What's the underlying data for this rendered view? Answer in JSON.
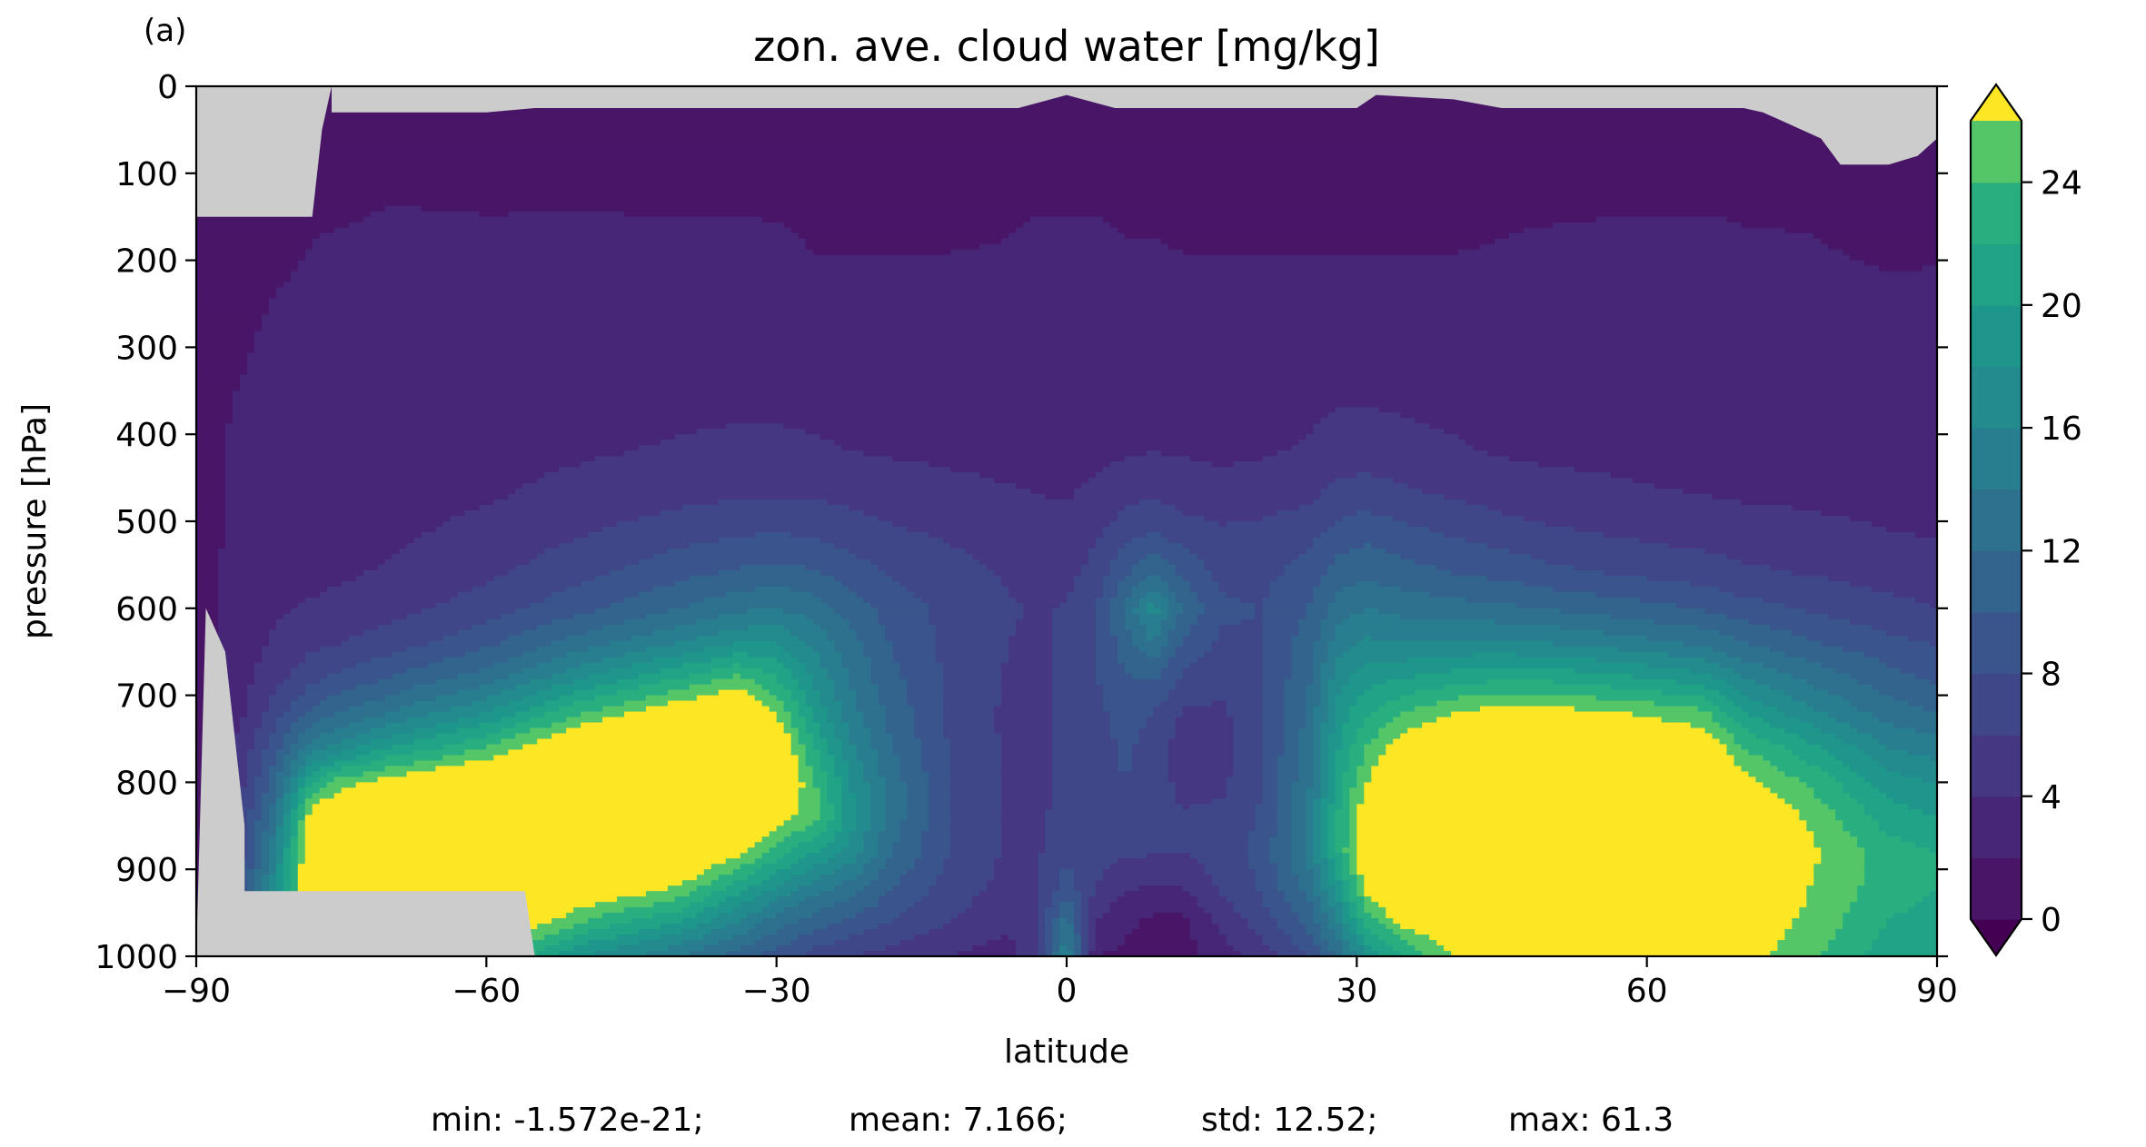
{
  "panel_label": "(a)",
  "chart_data": {
    "type": "heatmap",
    "subtype": "filled-contour",
    "title": "zon. ave. cloud water [mg/kg]",
    "xlabel": "latitude",
    "ylabel": "pressure [hPa]",
    "xlim": [
      -90,
      90
    ],
    "ylim": [
      1000,
      0
    ],
    "x_ticks": [
      -90,
      -60,
      -30,
      0,
      30,
      60,
      90
    ],
    "x_tick_labels": [
      "−90",
      "−60",
      "−30",
      "0",
      "30",
      "60",
      "90"
    ],
    "y_ticks": [
      0,
      100,
      200,
      300,
      400,
      500,
      600,
      700,
      800,
      900,
      1000
    ],
    "y_tick_labels": [
      "0",
      "100",
      "200",
      "300",
      "400",
      "500",
      "600",
      "700",
      "800",
      "900",
      "1000"
    ],
    "grid": false,
    "colormap": "viridis",
    "missing_color": "#cccccc",
    "colorbar": {
      "levels": [
        0,
        2,
        4,
        6,
        8,
        10,
        12,
        14,
        16,
        18,
        20,
        22,
        24,
        26
      ],
      "tick_values": [
        0,
        4,
        8,
        12,
        16,
        20,
        24
      ],
      "tick_labels": [
        "0",
        "4",
        "8",
        "12",
        "16",
        "20",
        "24"
      ],
      "extend": "both",
      "under_color": "#440154",
      "over_color": "#fde725",
      "band_colors": [
        "#481567",
        "#482677",
        "#453781",
        "#3f4788",
        "#39558c",
        "#32648e",
        "#2d718e",
        "#287d8e",
        "#238a8d",
        "#1f968b",
        "#20a386",
        "#29af7f",
        "#55c667",
        "#73d055"
      ]
    },
    "field_nodes": {
      "lat": [
        -90,
        -85,
        -82,
        -78,
        -75,
        -70,
        -60,
        -50,
        -40,
        -34,
        -30,
        -26,
        -22,
        -18,
        -12,
        -6,
        -3,
        0,
        3,
        6,
        9,
        12,
        16,
        20,
        25,
        28,
        31,
        35,
        40,
        45,
        50,
        60,
        66,
        70,
        78,
        85,
        90
      ],
      "lev": [
        30,
        75,
        120,
        175,
        240,
        330,
        420,
        470,
        510,
        560,
        600,
        640,
        680,
        720,
        760,
        800,
        840,
        880,
        920,
        960,
        1000
      ],
      "profiles": [
        [
          0.2,
          0.3,
          0.6,
          1.4,
          1.6,
          1.8,
          1.7,
          1.6,
          1.5,
          1.4,
          1.2,
          1.0,
          1.0,
          1.0,
          1.0,
          1.0,
          1.0,
          1.0,
          1.0,
          1.0,
          1.0
        ],
        [
          0.2,
          0.3,
          0.6,
          1.2,
          1.8,
          2.0,
          2.2,
          2.3,
          2.4,
          2.6,
          2.8,
          3.0,
          3.4,
          4.0,
          5.0,
          6.0,
          7.0,
          8.0,
          9.0,
          10.0,
          10.0
        ],
        [
          0.2,
          0.3,
          0.6,
          1.3,
          2.0,
          2.3,
          2.6,
          2.8,
          3.0,
          3.3,
          3.7,
          4.3,
          5.3,
          7.0,
          9.0,
          11.0,
          13.0,
          15.0,
          17.0,
          19.0,
          19.0
        ],
        [
          0.3,
          0.8,
          1.4,
          2.0,
          2.4,
          2.7,
          2.9,
          3.0,
          3.2,
          3.6,
          4.2,
          5.5,
          7.5,
          10.5,
          15.0,
          22.0,
          28.0,
          30.0,
          30.0,
          30.0,
          30.0
        ],
        [
          0.3,
          0.7,
          1.3,
          2.2,
          2.5,
          2.8,
          3.0,
          3.1,
          3.3,
          3.8,
          4.5,
          6.0,
          8.5,
          12.0,
          17.0,
          25.0,
          30.0,
          32.0,
          32.0,
          31.0,
          30.0
        ],
        [
          0.4,
          1.1,
          1.8,
          2.5,
          2.7,
          2.9,
          3.1,
          3.3,
          3.6,
          4.2,
          5.2,
          7.0,
          10.0,
          14.0,
          20.0,
          27.0,
          32.0,
          34.0,
          33.0,
          31.0,
          28.0
        ],
        [
          0.5,
          1.0,
          1.5,
          2.5,
          2.8,
          3.0,
          3.4,
          3.8,
          4.5,
          5.6,
          7.0,
          9.5,
          13.0,
          18.0,
          24.0,
          30.0,
          34.0,
          35.0,
          33.0,
          30.0,
          25.0
        ],
        [
          0.5,
          1.2,
          1.6,
          2.5,
          2.8,
          3.1,
          3.8,
          4.6,
          5.8,
          7.4,
          9.5,
          13.0,
          18.0,
          24.0,
          30.0,
          34.0,
          35.0,
          33.0,
          29.0,
          24.0,
          18.0
        ],
        [
          0.6,
          1.1,
          1.5,
          2.4,
          2.8,
          3.2,
          4.2,
          5.4,
          7.0,
          9.4,
          12.0,
          16.0,
          22.0,
          28.0,
          33.0,
          35.0,
          34.0,
          30.0,
          26.0,
          20.0,
          14.0
        ],
        [
          0.6,
          1.2,
          1.6,
          2.3,
          2.8,
          3.3,
          4.4,
          5.8,
          7.6,
          10.4,
          13.5,
          18.0,
          24.5,
          30.0,
          33.0,
          33.0,
          31.0,
          27.0,
          21.0,
          16.0,
          11.0
        ],
        [
          0.5,
          1.1,
          1.5,
          2.3,
          2.8,
          3.3,
          4.4,
          5.9,
          7.8,
          10.8,
          14.0,
          18.0,
          22.0,
          26.0,
          29.0,
          30.0,
          27.0,
          23.0,
          18.0,
          13.0,
          9.0
        ],
        [
          0.5,
          1.0,
          1.4,
          1.8,
          2.6,
          3.2,
          4.2,
          5.8,
          7.4,
          10.2,
          13.0,
          15.5,
          17.5,
          19.5,
          22.0,
          24.0,
          25.0,
          20.0,
          15.0,
          11.0,
          7.0
        ],
        [
          0.6,
          1.0,
          1.5,
          1.8,
          2.6,
          3.1,
          4.0,
          5.4,
          6.8,
          9.0,
          11.0,
          12.5,
          13.5,
          14.5,
          16.0,
          17.5,
          18.5,
          17.0,
          13.0,
          9.5,
          6.0
        ],
        [
          0.6,
          1.2,
          1.6,
          1.8,
          2.6,
          3.0,
          3.8,
          5.0,
          6.2,
          7.8,
          9.0,
          9.8,
          10.5,
          11.2,
          12.0,
          13.0,
          13.0,
          12.0,
          10.0,
          8.0,
          5.0
        ],
        [
          0.7,
          1.1,
          1.5,
          1.8,
          2.6,
          2.9,
          3.6,
          4.6,
          5.6,
          6.8,
          7.4,
          7.4,
          7.6,
          7.6,
          7.8,
          8.0,
          8.0,
          8.0,
          7.0,
          6.0,
          4.0
        ],
        [
          0.8,
          1.3,
          1.7,
          2.0,
          2.6,
          2.8,
          3.4,
          4.2,
          5.0,
          5.8,
          6.2,
          6.0,
          5.8,
          5.6,
          5.6,
          5.6,
          5.6,
          5.6,
          5.4,
          4.5,
          3.0
        ],
        [
          1.0,
          1.6,
          1.8,
          2.2,
          2.6,
          2.8,
          3.3,
          4.0,
          4.8,
          5.4,
          5.8,
          5.6,
          5.4,
          5.4,
          5.2,
          5.4,
          5.6,
          5.8,
          6.0,
          6.0,
          6.0
        ],
        [
          1.8,
          1.8,
          1.6,
          2.3,
          2.6,
          2.8,
          3.2,
          3.9,
          4.6,
          5.4,
          6.2,
          6.4,
          6.6,
          6.8,
          6.6,
          6.6,
          6.8,
          7.4,
          9.0,
          13.0,
          16.0
        ],
        [
          1.4,
          1.6,
          1.8,
          2.2,
          2.6,
          2.9,
          3.4,
          4.4,
          5.6,
          6.8,
          7.8,
          8.0,
          7.8,
          7.4,
          7.0,
          7.0,
          7.0,
          6.8,
          6.0,
          4.0,
          2.0
        ],
        [
          1.0,
          1.2,
          1.6,
          2.0,
          2.6,
          3.0,
          3.8,
          5.4,
          7.0,
          9.6,
          12.5,
          11.0,
          9.8,
          9.0,
          8.4,
          8.0,
          7.6,
          6.4,
          4.2,
          2.5,
          1.5
        ],
        [
          0.8,
          1.3,
          1.7,
          2.0,
          2.6,
          3.0,
          4.0,
          5.8,
          7.8,
          12.0,
          17.0,
          14.0,
          10.2,
          8.0,
          7.0,
          7.0,
          7.2,
          6.2,
          4.0,
          1.5,
          1.0
        ],
        [
          0.7,
          1.1,
          1.5,
          1.8,
          2.6,
          3.0,
          3.8,
          5.2,
          6.8,
          9.6,
          11.8,
          9.6,
          7.6,
          5.8,
          5.0,
          5.4,
          6.2,
          6.0,
          4.0,
          1.5,
          1.0
        ],
        [
          0.6,
          1.0,
          1.4,
          1.8,
          2.6,
          3.0,
          3.6,
          4.8,
          6.2,
          7.4,
          8.4,
          7.6,
          6.6,
          5.6,
          5.2,
          5.6,
          6.4,
          7.0,
          6.4,
          4.6,
          3.0
        ],
        [
          0.5,
          1.0,
          1.4,
          1.8,
          2.6,
          3.1,
          3.8,
          5.0,
          6.4,
          7.4,
          8.0,
          7.8,
          7.8,
          7.6,
          7.6,
          7.8,
          8.2,
          8.6,
          8.2,
          6.8,
          5.0
        ],
        [
          0.5,
          1.0,
          1.4,
          1.8,
          2.6,
          3.2,
          4.2,
          5.6,
          7.2,
          8.8,
          10.0,
          11.0,
          11.6,
          12.4,
          13.0,
          13.6,
          14.0,
          14.4,
          13.0,
          10.6,
          8.0
        ],
        [
          0.5,
          1.0,
          1.4,
          1.8,
          2.6,
          3.3,
          4.8,
          6.6,
          8.6,
          11.0,
          13.0,
          15.0,
          17.0,
          18.6,
          19.8,
          21.0,
          22.0,
          22.0,
          19.0,
          16.0,
          12.0
        ],
        [
          0.6,
          1.0,
          1.5,
          1.8,
          2.6,
          3.3,
          5.0,
          7.0,
          9.2,
          11.6,
          14.0,
          16.4,
          19.2,
          21.6,
          24.0,
          26.0,
          28.0,
          29.0,
          27.0,
          23.0,
          18.0
        ],
        [
          0.6,
          1.1,
          1.5,
          1.8,
          2.6,
          3.2,
          4.6,
          6.4,
          8.4,
          10.8,
          13.2,
          16.0,
          20.0,
          24.0,
          28.0,
          31.0,
          33.0,
          33.0,
          31.0,
          27.0,
          22.0
        ],
        [
          0.5,
          1.0,
          1.5,
          1.8,
          2.6,
          3.2,
          4.2,
          5.8,
          7.6,
          10.0,
          12.8,
          16.4,
          21.0,
          26.0,
          30.0,
          33.0,
          34.0,
          34.0,
          32.0,
          29.0,
          26.0
        ],
        [
          0.5,
          1.0,
          1.5,
          2.0,
          2.6,
          3.1,
          3.8,
          5.2,
          6.8,
          9.4,
          12.4,
          16.4,
          21.6,
          27.0,
          31.0,
          34.0,
          35.0,
          35.0,
          33.0,
          30.0,
          27.0
        ],
        [
          0.5,
          1.1,
          1.5,
          2.2,
          2.6,
          3.0,
          3.6,
          4.8,
          6.2,
          8.6,
          11.8,
          16.0,
          21.4,
          27.0,
          31.0,
          33.0,
          34.0,
          34.0,
          33.0,
          31.0,
          29.0
        ],
        [
          0.4,
          1.2,
          1.6,
          2.4,
          2.7,
          2.9,
          3.4,
          4.2,
          5.4,
          7.6,
          10.6,
          14.6,
          20.0,
          25.6,
          29.0,
          31.0,
          32.0,
          32.0,
          31.0,
          30.0,
          29.0
        ],
        [
          0.4,
          1.1,
          1.6,
          2.4,
          2.7,
          2.9,
          3.3,
          4.0,
          5.0,
          7.0,
          9.8,
          13.6,
          18.8,
          24.4,
          28.0,
          30.0,
          31.0,
          31.0,
          30.0,
          29.0,
          28.0
        ],
        [
          0.3,
          0.7,
          1.5,
          2.2,
          2.6,
          2.9,
          3.2,
          3.8,
          4.8,
          6.4,
          8.8,
          12.0,
          16.0,
          20.0,
          24.0,
          27.0,
          29.0,
          30.0,
          29.0,
          28.0,
          27.0
        ],
        [
          0.3,
          0.8,
          1.6,
          2.0,
          2.6,
          2.8,
          3.1,
          3.6,
          4.4,
          5.8,
          7.6,
          10.0,
          13.0,
          16.0,
          20.0,
          23.0,
          25.0,
          26.0,
          25.5,
          25.0,
          24.0
        ],
        [
          0.3,
          0.6,
          1.3,
          1.4,
          2.4,
          2.8,
          3.0,
          3.4,
          4.0,
          5.2,
          6.6,
          8.6,
          10.8,
          13.0,
          16.0,
          19.0,
          21.0,
          23.0,
          23.0,
          22.0,
          21.0
        ],
        [
          0.3,
          0.6,
          1.4,
          1.6,
          2.4,
          2.8,
          3.0,
          3.2,
          3.8,
          4.8,
          6.0,
          7.8,
          9.6,
          12.0,
          15.0,
          18.0,
          20.0,
          22.0,
          22.0,
          21.0,
          20.0
        ]
      ],
      "missing_regions": [
        [
          [
            -90,
            0
          ],
          [
            -90,
            150
          ],
          [
            -78,
            150
          ],
          [
            -77,
            50
          ],
          [
            -76,
            0
          ]
        ],
        [
          [
            -89,
            600
          ],
          [
            -87,
            650
          ],
          [
            -86,
            750
          ],
          [
            -85,
            850
          ],
          [
            -85,
            925
          ],
          [
            -56,
            925
          ],
          [
            -55,
            1000
          ],
          [
            -90,
            1000
          ]
        ],
        [
          [
            -90,
            0
          ],
          [
            90,
            0
          ],
          [
            90,
            60
          ],
          [
            88,
            80
          ],
          [
            85,
            90
          ],
          [
            80,
            90
          ],
          [
            78,
            60
          ],
          [
            74,
            40
          ],
          [
            72,
            30
          ],
          [
            70,
            25
          ],
          [
            45,
            25
          ],
          [
            40,
            15
          ],
          [
            32,
            10
          ],
          [
            30,
            25
          ],
          [
            5,
            25
          ],
          [
            0,
            10
          ],
          [
            -5,
            25
          ],
          [
            -55,
            25
          ],
          [
            -60,
            30
          ],
          [
            -76,
            30
          ],
          [
            -76,
            0
          ]
        ]
      ]
    },
    "stats_line": {
      "min": "min: -1.572e-21;",
      "mean": "mean: 7.166;",
      "std": "std: 12.52;",
      "max": "max: 61.3"
    }
  }
}
